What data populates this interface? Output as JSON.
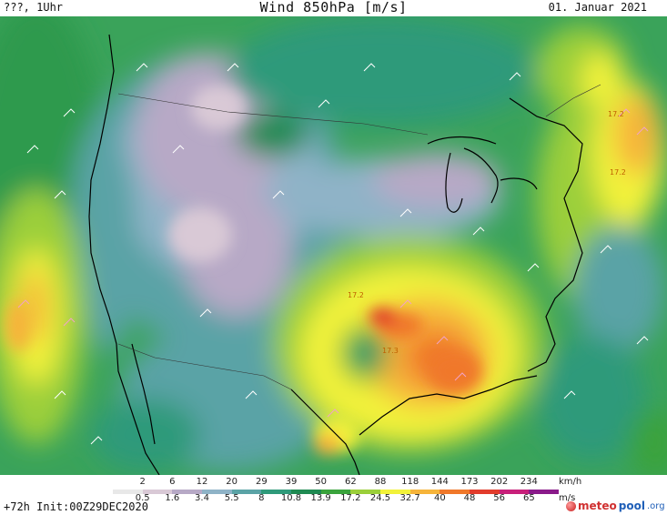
{
  "header": {
    "left": "???, 1Uhr",
    "title": "Wind 850hPa [m/s]",
    "right": "01. Januar 2021"
  },
  "map": {
    "annotations": [
      "17.2",
      "17.2",
      "17.2",
      "17.3"
    ]
  },
  "legend": {
    "kmh_values": [
      "2",
      "6",
      "12",
      "20",
      "29",
      "39",
      "50",
      "62",
      "88",
      "118",
      "144",
      "173",
      "202",
      "234"
    ],
    "kmh_unit": "km/h",
    "ms_values": [
      "0.5",
      "1.6",
      "3.4",
      "5.5",
      "8",
      "10.8",
      "13.9",
      "17.2",
      "24.5",
      "32.7",
      "40",
      "48",
      "56",
      "65"
    ],
    "ms_unit": "m/s",
    "colors": [
      "#e8e8e8",
      "#d9c9d6",
      "#b7a9c6",
      "#8fb3c7",
      "#5aa3a6",
      "#2f9a7a",
      "#1f8a52",
      "#3aa33c",
      "#9bcf3a",
      "#f2f23a",
      "#f6b43a",
      "#f0782a",
      "#e23c2c",
      "#c8207a",
      "#8a1a8a"
    ]
  },
  "footer": {
    "init": "+72h Init:00Z29DEC2020",
    "brand_main": "meteo",
    "brand_pool": "pool",
    "brand_org": ".org"
  }
}
